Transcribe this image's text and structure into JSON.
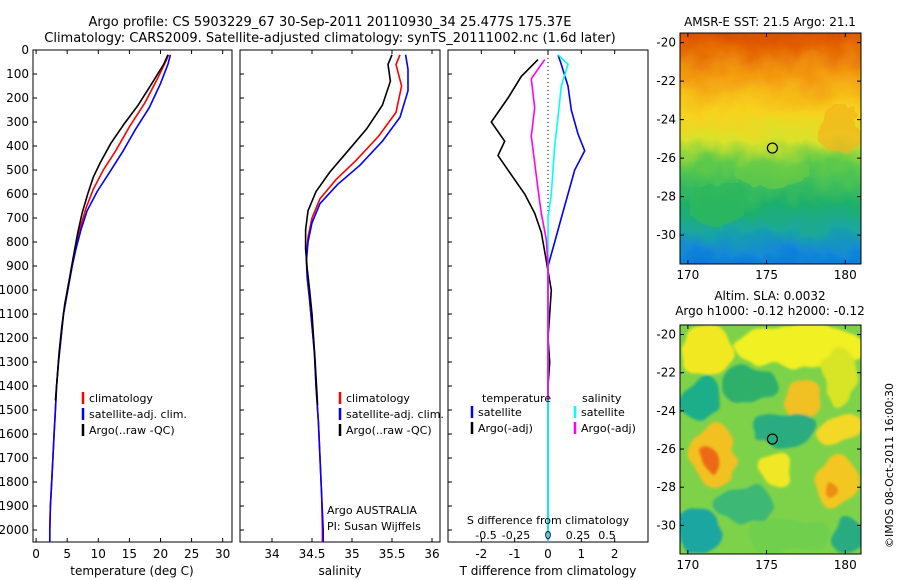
{
  "header": {
    "line1": "Argo profile: CS 5903229_67 30-Sep-2011 20110930_34 25.477S 175.37E",
    "line2": "Climatology: CARS2009. Satellite-adjusted climatology: synTS_20111002.nc (1.6d later)"
  },
  "colors": {
    "climatology": "#ff0000",
    "satellite": "#0000ff",
    "argo": "#000000",
    "argo_salinity_diff": "#ff00ff",
    "satellite_salinity_diff": "#00ffff"
  },
  "depth_axis": {
    "ylim": [
      2050,
      0
    ],
    "ticks": [
      0,
      100,
      200,
      300,
      400,
      500,
      600,
      700,
      800,
      900,
      1000,
      1100,
      1200,
      1300,
      1400,
      1500,
      1600,
      1700,
      1800,
      1900,
      2000
    ]
  },
  "chart_data": [
    {
      "type": "line",
      "panel": "temperature",
      "xlabel": "temperature (deg C)",
      "xlim": [
        -0.5,
        31.5
      ],
      "xticks": [
        0,
        5,
        10,
        15,
        20,
        25,
        30
      ],
      "series": [
        {
          "name": "climatology",
          "color": "#ff0000",
          "points": [
            [
              21.3,
              20
            ],
            [
              20.8,
              50
            ],
            [
              19.5,
              120
            ],
            [
              17.5,
              220
            ],
            [
              15,
              320
            ],
            [
              12.8,
              420
            ],
            [
              10.8,
              500
            ],
            [
              9.2,
              580
            ],
            [
              8,
              660
            ],
            [
              7.1,
              740
            ],
            [
              6.4,
              820
            ],
            [
              5.8,
              900
            ],
            [
              5.1,
              1000
            ],
            [
              4.4,
              1100
            ],
            [
              4,
              1200
            ],
            [
              3.6,
              1300
            ],
            [
              3.3,
              1400
            ],
            [
              3.1,
              1500
            ],
            [
              2.9,
              1600
            ],
            [
              2.7,
              1700
            ],
            [
              2.5,
              1800
            ],
            [
              2.3,
              1900
            ],
            [
              2.2,
              2000
            ],
            [
              2.2,
              2050
            ]
          ]
        },
        {
          "name": "satellite-adj. clim.",
          "color": "#0000ff",
          "points": [
            [
              21.6,
              20
            ],
            [
              21.2,
              60
            ],
            [
              20,
              140
            ],
            [
              18.2,
              240
            ],
            [
              16,
              330
            ],
            [
              14,
              420
            ],
            [
              11.8,
              510
            ],
            [
              9.8,
              590
            ],
            [
              8.2,
              670
            ],
            [
              7.2,
              750
            ],
            [
              6.4,
              830
            ],
            [
              5.8,
              900
            ],
            [
              5.1,
              1000
            ],
            [
              4.4,
              1100
            ],
            [
              4,
              1200
            ],
            [
              3.6,
              1300
            ],
            [
              3.3,
              1400
            ],
            [
              3.1,
              1500
            ],
            [
              2.9,
              1600
            ],
            [
              2.7,
              1700
            ],
            [
              2.5,
              1800
            ],
            [
              2.3,
              1900
            ],
            [
              2.2,
              2000
            ],
            [
              2.2,
              2050
            ]
          ]
        },
        {
          "name": "Argo(..raw -QC)",
          "color": "#000000",
          "points": [
            [
              21.2,
              20
            ],
            [
              20.5,
              60
            ],
            [
              18.6,
              140
            ],
            [
              16.4,
              230
            ],
            [
              14.1,
              310
            ],
            [
              12,
              390
            ],
            [
              10.3,
              470
            ],
            [
              9.2,
              530
            ],
            [
              8.3,
              600
            ],
            [
              7.4,
              680
            ],
            [
              6.7,
              760
            ],
            [
              6,
              860
            ],
            [
              5.3,
              960
            ],
            [
              4.6,
              1060
            ],
            [
              4.1,
              1160
            ],
            [
              3.7,
              1260
            ],
            [
              3.4,
              1360
            ],
            [
              3.1,
              1460
            ]
          ]
        }
      ],
      "legend": [
        "climatology",
        "satellite-adj. clim.",
        "Argo(..raw -QC)"
      ]
    },
    {
      "type": "line",
      "panel": "salinity",
      "xlabel": "salinity",
      "xlim": [
        33.6,
        36.1
      ],
      "xticks": [
        34,
        34.5,
        35,
        35.5,
        36
      ],
      "annotation": [
        "Argo AUSTRALIA",
        "PI: Susan Wijffels"
      ],
      "series": [
        {
          "name": "climatology",
          "color": "#ff0000",
          "points": [
            [
              35.6,
              20
            ],
            [
              35.55,
              60
            ],
            [
              35.62,
              150
            ],
            [
              35.55,
              260
            ],
            [
              35.33,
              360
            ],
            [
              35.05,
              460
            ],
            [
              34.8,
              540
            ],
            [
              34.6,
              620
            ],
            [
              34.5,
              700
            ],
            [
              34.45,
              780
            ],
            [
              34.43,
              860
            ],
            [
              34.44,
              940
            ],
            [
              34.47,
              1040
            ],
            [
              34.5,
              1150
            ],
            [
              34.53,
              1260
            ],
            [
              34.55,
              1400
            ],
            [
              34.58,
              1550
            ],
            [
              34.6,
              1700
            ],
            [
              34.62,
              1850
            ],
            [
              34.63,
              2000
            ],
            [
              34.63,
              2050
            ]
          ]
        },
        {
          "name": "satellite-adj. clim.",
          "color": "#0000ff",
          "points": [
            [
              35.67,
              20
            ],
            [
              35.7,
              80
            ],
            [
              35.7,
              170
            ],
            [
              35.6,
              280
            ],
            [
              35.38,
              380
            ],
            [
              35.1,
              480
            ],
            [
              34.82,
              560
            ],
            [
              34.6,
              640
            ],
            [
              34.5,
              720
            ],
            [
              34.45,
              800
            ],
            [
              34.43,
              880
            ],
            [
              34.44,
              950
            ],
            [
              34.47,
              1040
            ],
            [
              34.5,
              1150
            ],
            [
              34.53,
              1260
            ],
            [
              34.55,
              1400
            ],
            [
              34.58,
              1550
            ],
            [
              34.6,
              1700
            ],
            [
              34.62,
              1850
            ],
            [
              34.64,
              2000
            ],
            [
              34.64,
              2050
            ]
          ]
        },
        {
          "name": "Argo(..raw -QC)",
          "color": "#000000",
          "points": [
            [
              35.5,
              20
            ],
            [
              35.45,
              60
            ],
            [
              35.48,
              130
            ],
            [
              35.38,
              230
            ],
            [
              35.18,
              330
            ],
            [
              34.95,
              420
            ],
            [
              34.72,
              510
            ],
            [
              34.55,
              590
            ],
            [
              34.45,
              670
            ],
            [
              34.42,
              750
            ],
            [
              34.42,
              830
            ],
            [
              34.44,
              910
            ],
            [
              34.47,
              1000
            ],
            [
              34.5,
              1100
            ],
            [
              34.52,
              1200
            ],
            [
              34.54,
              1300
            ],
            [
              34.56,
              1420
            ],
            [
              34.57,
              1480
            ]
          ]
        }
      ],
      "legend": [
        "climatology",
        "satellite-adj. clim.",
        "Argo(..raw -QC)"
      ]
    },
    {
      "type": "line",
      "panel": "difference",
      "xlabel_top": "S difference from climatology",
      "xlabel": "T difference from climatology",
      "xlim": [
        -3,
        3
      ],
      "xticks": [
        -2,
        -1,
        0,
        1,
        2
      ],
      "xticks_top": [
        "-0.5",
        "-0.25",
        "0",
        "0.25",
        "0.5"
      ],
      "series": [
        {
          "name": "temperature satellite",
          "color": "#0000ff",
          "points": [
            [
              0.3,
              20
            ],
            [
              0.4,
              60
            ],
            [
              0.6,
              150
            ],
            [
              0.7,
              250
            ],
            [
              0.9,
              350
            ],
            [
              1.1,
              420
            ],
            [
              0.8,
              500
            ],
            [
              0.6,
              600
            ],
            [
              0.4,
              700
            ],
            [
              0.2,
              800
            ],
            [
              0,
              900
            ],
            [
              0,
              1000
            ],
            [
              0,
              1200
            ],
            [
              0,
              1400
            ],
            [
              0,
              1700
            ],
            [
              0,
              2050
            ]
          ]
        },
        {
          "name": "temperature Argo(-adj)",
          "color": "#000000",
          "points": [
            [
              -0.3,
              40
            ],
            [
              -0.8,
              110
            ],
            [
              -1.2,
              200
            ],
            [
              -1.7,
              300
            ],
            [
              -1.3,
              380
            ],
            [
              -1.5,
              440
            ],
            [
              -1.1,
              520
            ],
            [
              -0.7,
              600
            ],
            [
              -0.4,
              680
            ],
            [
              -0.2,
              760
            ],
            [
              -0.1,
              840
            ],
            [
              0,
              920
            ],
            [
              0.1,
              1000
            ],
            [
              0.05,
              1100
            ],
            [
              0,
              1200
            ],
            [
              0.05,
              1300
            ],
            [
              0,
              1400
            ],
            [
              0,
              1460
            ]
          ]
        },
        {
          "name": "salinity satellite",
          "color": "#00ffff",
          "points": [
            [
              0.3,
              20
            ],
            [
              0.6,
              60
            ],
            [
              0.4,
              150
            ],
            [
              0.3,
              280
            ],
            [
              0.2,
              400
            ],
            [
              0.15,
              500
            ],
            [
              0.1,
              600
            ],
            [
              0,
              700
            ],
            [
              0,
              900
            ],
            [
              0,
              1300
            ],
            [
              0,
              1700
            ],
            [
              0,
              2050
            ]
          ]
        },
        {
          "name": "salinity Argo(-adj)",
          "color": "#ff00ff",
          "points": [
            [
              -0.1,
              40
            ],
            [
              -0.5,
              120
            ],
            [
              -0.4,
              240
            ],
            [
              -0.5,
              360
            ],
            [
              -0.4,
              470
            ],
            [
              -0.3,
              580
            ],
            [
              -0.2,
              680
            ],
            [
              -0.05,
              790
            ],
            [
              0,
              900
            ],
            [
              0,
              1100
            ],
            [
              0,
              1300
            ],
            [
              0,
              1460
            ]
          ]
        }
      ],
      "legend_left_title": "temperature",
      "legend_right_title": "salinity",
      "legend_left": [
        "satellite",
        "Argo(-adj)"
      ],
      "legend_right": [
        "satellite",
        "Argo(-adj)"
      ]
    },
    {
      "type": "heatmap",
      "panel": "sst_map",
      "title": "AMSR-E SST: 21.5 Argo: 21.1",
      "xlim": [
        169.5,
        181
      ],
      "ylim": [
        -31.5,
        -19.5
      ],
      "xticks": [
        170,
        175,
        180
      ],
      "yticks": [
        -20,
        -22,
        -24,
        -26,
        -28,
        -30
      ],
      "marker": [
        175.37,
        -25.477
      ]
    },
    {
      "type": "heatmap",
      "panel": "sla_map",
      "title_lines": [
        "Altim. SLA: 0.0032",
        "Argo h1000: -0.12 h2000: -0.12"
      ],
      "xlim": [
        169.5,
        181
      ],
      "ylim": [
        -31.5,
        -19.5
      ],
      "xticks": [
        170,
        175,
        180
      ],
      "yticks": [
        -20,
        -22,
        -24,
        -26,
        -28,
        -30
      ],
      "marker": [
        175.37,
        -25.477
      ]
    }
  ],
  "side_label": "©IMOS 08-Oct-2011 16:00:30"
}
